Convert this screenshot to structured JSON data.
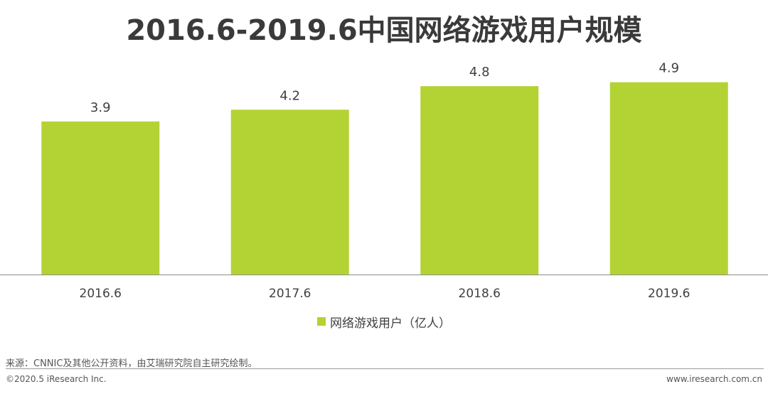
{
  "title": "2016.6-2019.6中国网络游戏用户规模",
  "chart_data": {
    "type": "bar",
    "categories": [
      "2016.6",
      "2017.6",
      "2018.6",
      "2019.6"
    ],
    "series": [
      {
        "name": "网络游戏用户（亿人）",
        "values": [
          3.9,
          4.2,
          4.8,
          4.9
        ],
        "labels": [
          "3.9",
          "4.2",
          "4.8",
          "4.9"
        ]
      }
    ],
    "ylim": [
      0,
      5.6
    ],
    "grid": false,
    "legend_position": "bottom",
    "bar_color": "#b3d334"
  },
  "legend": {
    "label": "网络游戏用户（亿人）",
    "color": "#b3d334"
  },
  "source": "来源：CNNIC及其他公开资料，由艾瑞研究院自主研究绘制。",
  "copyright": "©2020.5 iResearch Inc.",
  "website": "www.iresearch.com.cn"
}
